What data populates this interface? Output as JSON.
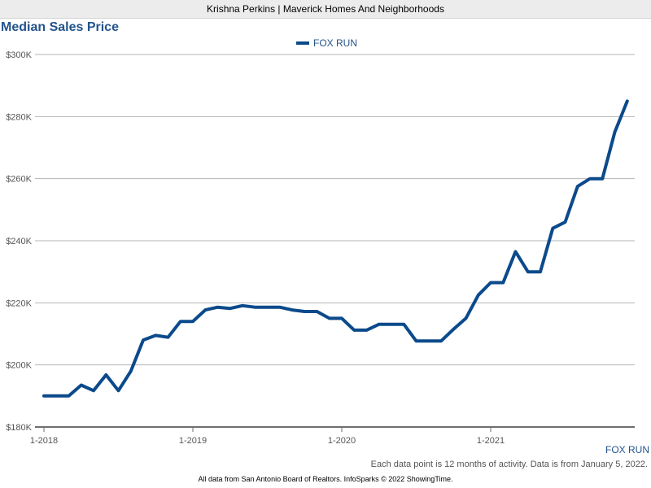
{
  "header": {
    "title": "Krishna Perkins | Maverick Homes And Neighborhoods"
  },
  "chart_data": {
    "type": "line",
    "title": "Median Sales Price",
    "xlabel": "",
    "ylabel": "",
    "ylim": [
      180000,
      300000
    ],
    "yticks": [
      180000,
      200000,
      220000,
      240000,
      260000,
      280000,
      300000
    ],
    "ytick_labels": [
      "$180K",
      "$200K",
      "$220K",
      "$240K",
      "$260K",
      "$280K",
      "$300K"
    ],
    "xtick_labels": [
      "1-2018",
      "1-2019",
      "1-2020",
      "1-2021"
    ],
    "grid": true,
    "legend": "top-center",
    "colors": {
      "series": "#0b4a8b",
      "title": "#23548c",
      "grid": "#b5b5b5",
      "axis": "#6e6e6e"
    },
    "x": [
      "2018-01",
      "2018-02",
      "2018-03",
      "2018-04",
      "2018-05",
      "2018-06",
      "2018-07",
      "2018-08",
      "2018-09",
      "2018-10",
      "2018-11",
      "2018-12",
      "2019-01",
      "2019-02",
      "2019-03",
      "2019-04",
      "2019-05",
      "2019-06",
      "2019-07",
      "2019-08",
      "2019-09",
      "2019-10",
      "2019-11",
      "2019-12",
      "2020-01",
      "2020-02",
      "2020-03",
      "2020-04",
      "2020-05",
      "2020-06",
      "2020-07",
      "2020-08",
      "2020-09",
      "2020-10",
      "2020-11",
      "2020-12",
      "2021-01",
      "2021-02",
      "2021-03",
      "2021-04",
      "2021-05",
      "2021-06",
      "2021-07",
      "2021-08",
      "2021-09",
      "2021-10",
      "2021-11",
      "2021-12"
    ],
    "series": [
      {
        "name": "FOX RUN",
        "values": [
          190000,
          190000,
          190000,
          193500,
          191700,
          196800,
          191700,
          198000,
          208000,
          209500,
          208900,
          214000,
          214000,
          217700,
          218600,
          218200,
          219100,
          218600,
          218600,
          218600,
          217700,
          217200,
          217200,
          215000,
          215000,
          211200,
          211200,
          213100,
          213100,
          213100,
          207700,
          207700,
          207700,
          211500,
          215000,
          222500,
          226500,
          226500,
          236500,
          230000,
          230000,
          244000,
          246000,
          257500,
          260000,
          260000,
          275000,
          285000
        ]
      }
    ]
  },
  "legend_label": "FOX RUN",
  "series_tag": "FOX RUN",
  "footnote": "Each data point is 12 months of activity. Data is from January 5, 2022.",
  "source": "All data from San Antonio Board of Realtors. InfoSparks © 2022 ShowingTime."
}
